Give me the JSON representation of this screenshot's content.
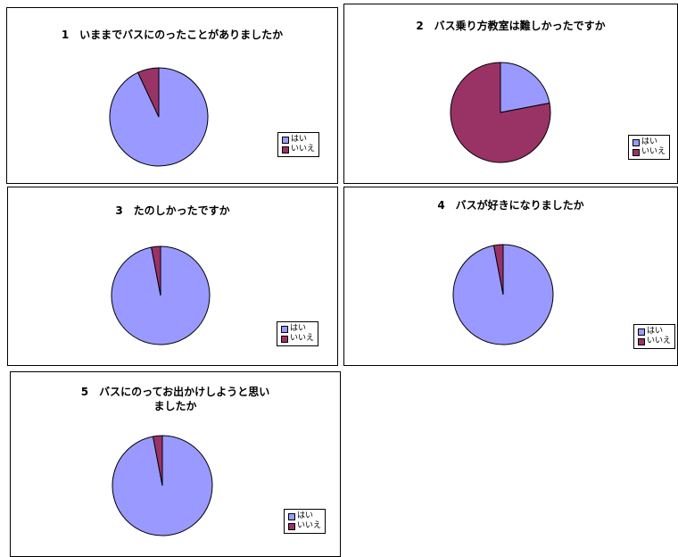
{
  "colors": {
    "yes": "#9999ff",
    "no": "#993366",
    "outline": "#000000"
  },
  "legend": {
    "yes_label": "はい",
    "no_label": "いいえ"
  },
  "chart_data": [
    {
      "type": "pie",
      "title": "1　いままでバスにのったことがありましたか",
      "categories": [
        "はい",
        "いいえ"
      ],
      "values": [
        93,
        7
      ]
    },
    {
      "type": "pie",
      "title": "2　バス乗り方教室は難しかったですか",
      "categories": [
        "はい",
        "いいえ"
      ],
      "values": [
        22,
        78
      ]
    },
    {
      "type": "pie",
      "title": "3　たのしかったですか",
      "categories": [
        "はい",
        "いいえ"
      ],
      "values": [
        97,
        3
      ]
    },
    {
      "type": "pie",
      "title": "4　バスが好きになりましたか",
      "categories": [
        "はい",
        "いいえ"
      ],
      "values": [
        97,
        3
      ]
    },
    {
      "type": "pie",
      "title": "5　バスにのってお出かけしようと思い\nましたか",
      "categories": [
        "はい",
        "いいえ"
      ],
      "values": [
        97,
        3
      ]
    }
  ]
}
